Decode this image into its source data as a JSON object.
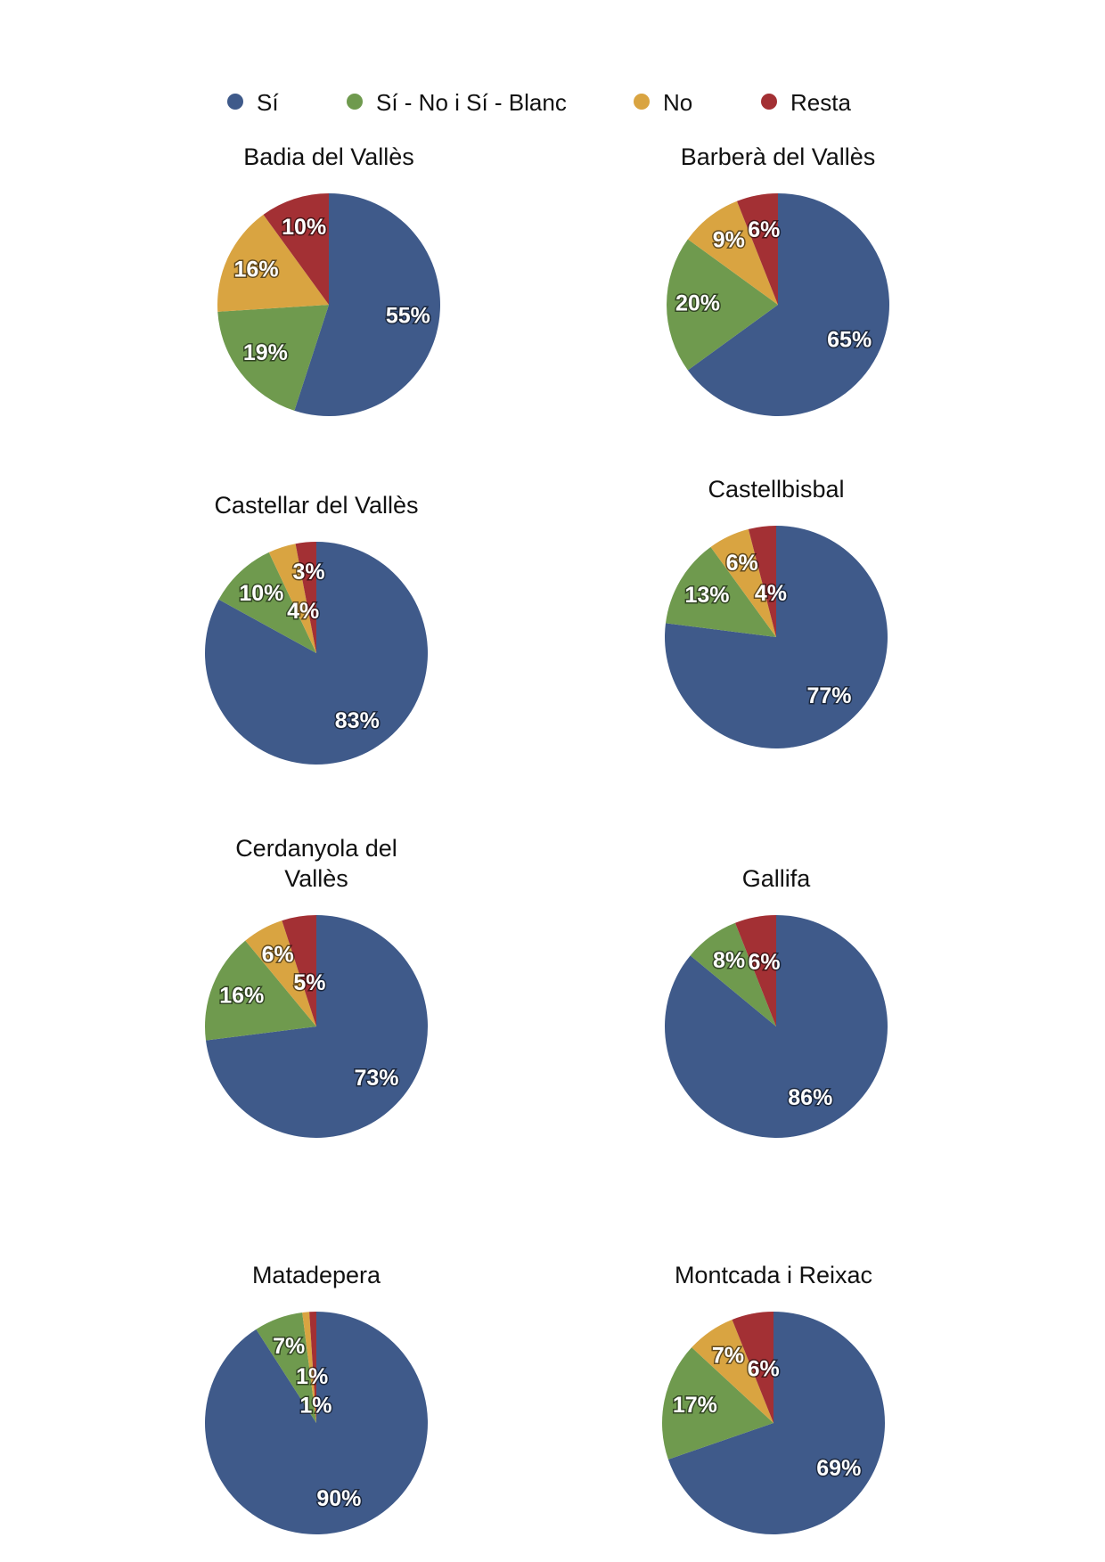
{
  "chart_data": {
    "type": "pie",
    "legend": {
      "placement": "top",
      "entries": [
        {
          "label": "Sí",
          "color": "#3f5a8a"
        },
        {
          "label": "Sí - No i Sí - Blanc",
          "color": "#6f9a4e"
        },
        {
          "label": "No",
          "color": "#d9a441"
        },
        {
          "label": "Resta",
          "color": "#a33034"
        }
      ]
    },
    "charts": [
      {
        "title": [
          "Badia del Vallès"
        ],
        "values": [
          55,
          19,
          16,
          10
        ],
        "labels": [
          "55%",
          "19%",
          "16%",
          "10%"
        ]
      },
      {
        "title": [
          "Barberà del Vallès"
        ],
        "values": [
          65,
          20,
          9,
          6
        ],
        "labels": [
          "65%",
          "20%",
          "9%",
          "6%"
        ]
      },
      {
        "title": [
          "Castellar del Vallès"
        ],
        "values": [
          83,
          10,
          4,
          3
        ],
        "labels": [
          "83%",
          "10%",
          "4%",
          "3%"
        ]
      },
      {
        "title": [
          "Castellbisbal"
        ],
        "values": [
          77,
          13,
          6,
          4
        ],
        "labels": [
          "77%",
          "13%",
          "6%",
          "4%"
        ]
      },
      {
        "title": [
          "Cerdanyola del",
          "Vallès"
        ],
        "values": [
          73,
          16,
          6,
          5
        ],
        "labels": [
          "73%",
          "16%",
          "6%",
          "5%"
        ]
      },
      {
        "title": [
          "Gallifa"
        ],
        "values": [
          86,
          8,
          0,
          6
        ],
        "labels": [
          "86%",
          "8%",
          "",
          "6%"
        ]
      },
      {
        "title": [
          "Matadepera"
        ],
        "values": [
          90,
          7,
          1,
          1
        ],
        "labels": [
          "90%",
          "7%",
          "1%",
          "1%"
        ]
      },
      {
        "title": [
          "Montcada i Reixac"
        ],
        "values": [
          69,
          17,
          7,
          6
        ],
        "labels": [
          "69%",
          "17%",
          "7%",
          "6%"
        ]
      }
    ]
  }
}
